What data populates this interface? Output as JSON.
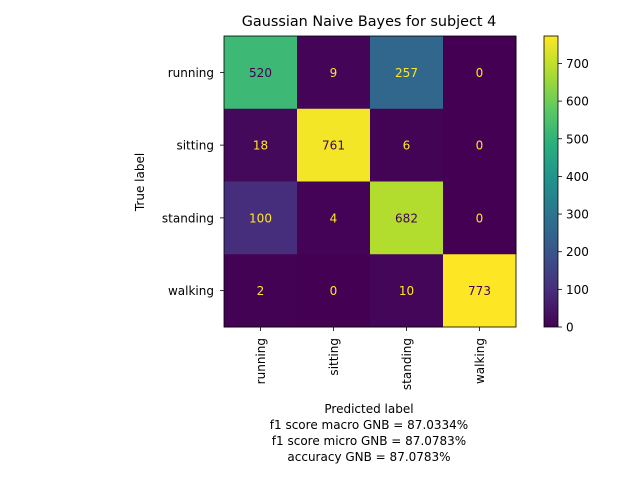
{
  "chart_data": {
    "type": "heatmap",
    "title": "Gaussian Naive Bayes for subject 4",
    "xlabel": "Predicted label",
    "ylabel": "True label",
    "xlabel_notes": [
      "f1 score macro GNB = 87.0334%",
      "f1 score micro GNB = 87.0783%",
      "accuracy GNB = 87.0783%"
    ],
    "x_categories": [
      "running",
      "sitting",
      "standing",
      "walking"
    ],
    "y_categories": [
      "running",
      "sitting",
      "standing",
      "walking"
    ],
    "matrix": [
      [
        520,
        9,
        257,
        0
      ],
      [
        18,
        761,
        6,
        0
      ],
      [
        100,
        4,
        682,
        0
      ],
      [
        2,
        0,
        10,
        773
      ]
    ],
    "colormap": "viridis",
    "colorbar": {
      "range": [
        0,
        773
      ],
      "ticks": [
        0,
        100,
        200,
        300,
        400,
        500,
        600,
        700
      ]
    },
    "annotation_colors": {
      "on_dark": "#fde725",
      "on_light": "#440154"
    }
  }
}
